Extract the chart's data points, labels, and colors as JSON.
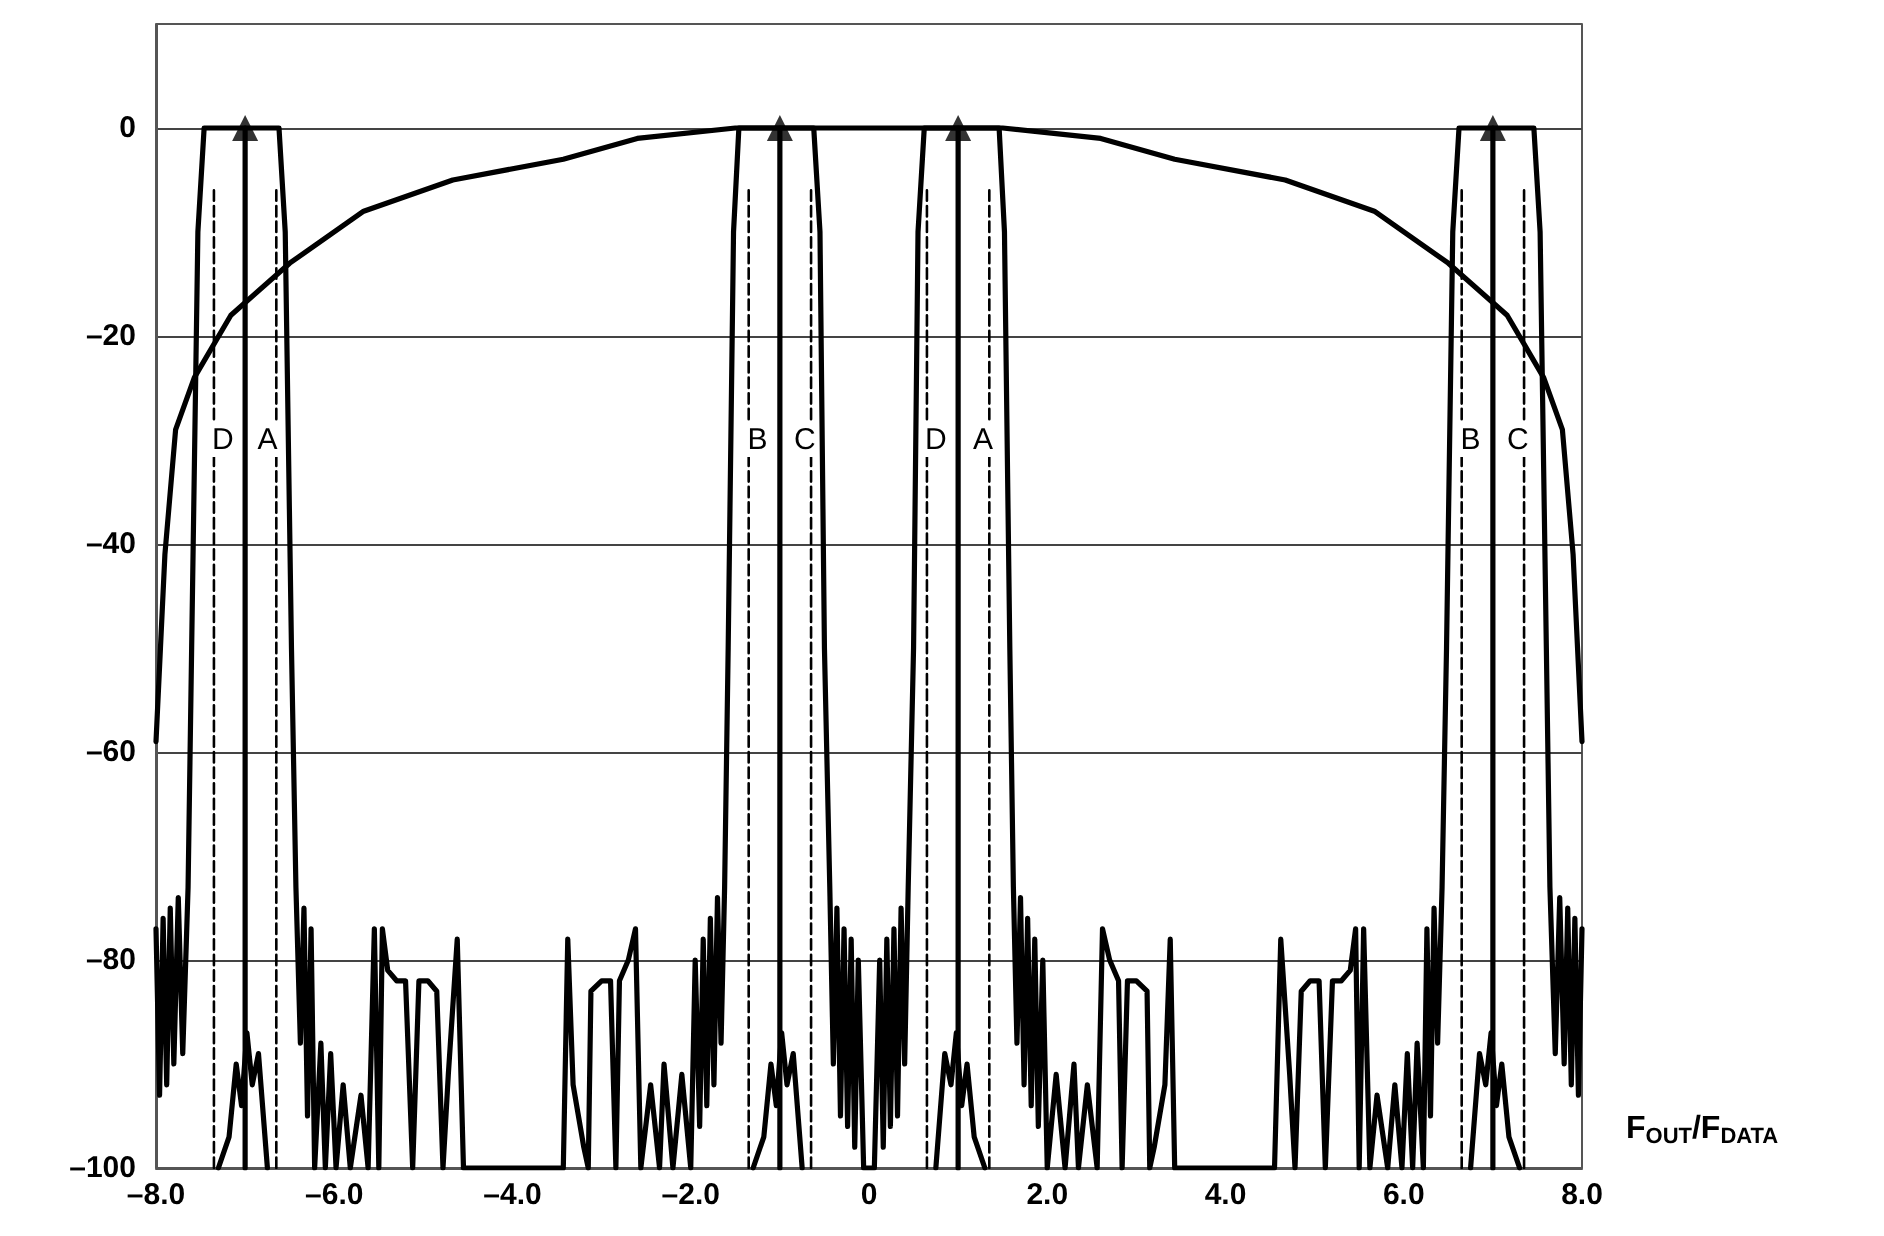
{
  "chart_data": {
    "type": "line",
    "xlabel": "F$_{OUT}$/F$_{DATA}$",
    "xlim": [
      -8,
      8
    ],
    "xticks": [
      {
        "value": -8,
        "label": "–8.0"
      },
      {
        "value": -6,
        "label": "–6.0"
      },
      {
        "value": -4,
        "label": "–4.0"
      },
      {
        "value": -2,
        "label": "–2.0"
      },
      0,
      {
        "value": 2,
        "label": "2.0"
      },
      {
        "value": 4,
        "label": "4.0"
      },
      {
        "value": 6,
        "label": "6.0"
      },
      {
        "value": 8,
        "label": "8.0"
      }
    ],
    "ylim": [
      -100,
      10
    ],
    "yticks": [
      {
        "value": -100,
        "label": "–100"
      },
      {
        "value": -80,
        "label": "–80"
      },
      {
        "value": -60,
        "label": "–60"
      },
      {
        "value": -40,
        "label": "–40"
      },
      {
        "value": -20,
        "label": "–20"
      },
      0
    ],
    "grid": "y",
    "marker": "none",
    "series": [
      {
        "color": "#000000",
        "x": [
          -8,
          -7.95,
          -7.9,
          -7.78,
          -7.57,
          -7.16,
          -6.5,
          -5.67,
          -4.67,
          -3.43,
          -2.6,
          -1.5,
          0,
          1.5,
          2.6,
          3.43,
          4.67,
          5.67,
          6.5,
          7.16,
          7.57,
          7.78,
          7.9,
          7.95,
          8
        ],
        "values": [
          -59,
          -50,
          -41,
          -29,
          -24,
          -18,
          -13,
          -8,
          -5,
          -3,
          -1,
          0,
          0,
          0,
          -1,
          -3,
          -5,
          -8,
          -13,
          -18,
          -24,
          -29,
          -41,
          -50,
          -59
        ]
      },
      {
        "color": "#000000",
        "x": [
          -8,
          -7.96,
          -7.92,
          -7.88,
          -7.84,
          -7.8,
          -7.75,
          -7.7,
          -7.64,
          -7.6,
          -7.53,
          -7.46,
          -6.62,
          -6.55,
          -6.48,
          -6.43,
          -6.38,
          -6.34,
          -6.3,
          -6.26,
          -6.22,
          -6.15,
          -6.1,
          -6.04,
          -5.98,
          -5.9,
          -5.82,
          -5.7,
          -5.62,
          -5.55,
          -5.5,
          -5.46,
          -5.4,
          -5.3,
          -5.2,
          -5.12,
          -5.05,
          -4.95,
          -4.85,
          -4.78,
          -4.72,
          -4.62,
          -4.55,
          -3.43,
          -3.38,
          -3.32,
          -3.2,
          -3.15,
          -3.12,
          -3.0,
          -2.9,
          -2.84,
          -2.8,
          -2.7,
          -2.62,
          -2.56,
          -2.45,
          -2.35,
          -2.3,
          -2.2,
          -2.1,
          -2.0,
          -1.95,
          -1.9,
          -1.86,
          -1.82,
          -1.78,
          -1.74,
          -1.7,
          -1.66,
          -1.62,
          -1.58,
          -1.52,
          -1.46,
          -0.62,
          -0.55,
          -0.5,
          -0.44,
          -0.4,
          -0.36,
          -0.32,
          -0.28,
          -0.24,
          -0.2,
          -0.16,
          -0.12,
          -0.06,
          0,
          0.06,
          0.12,
          0.16,
          0.2,
          0.24,
          0.28,
          0.32,
          0.36,
          0.4,
          0.44,
          0.5,
          0.55,
          0.62,
          1.46,
          1.52,
          1.58,
          1.62,
          1.66,
          1.7,
          1.74,
          1.78,
          1.82,
          1.86,
          1.9,
          1.95,
          2.0,
          2.1,
          2.2,
          2.3,
          2.35,
          2.45,
          2.56,
          2.62,
          2.7,
          2.8,
          2.84,
          2.9,
          3.0,
          3.12,
          3.15,
          3.2,
          3.32,
          3.38,
          3.43,
          4.55,
          4.62,
          4.72,
          4.78,
          4.85,
          4.95,
          5.05,
          5.12,
          5.2,
          5.3,
          5.4,
          5.46,
          5.5,
          5.55,
          5.62,
          5.7,
          5.82,
          5.9,
          5.98,
          6.04,
          6.1,
          6.15,
          6.22,
          6.26,
          6.3,
          6.34,
          6.38,
          6.43,
          6.48,
          6.55,
          6.62,
          7.46,
          7.53,
          7.6,
          7.64,
          7.7,
          7.75,
          7.8,
          7.84,
          7.88,
          7.92,
          7.96,
          8
        ],
        "values": [
          -77,
          -93,
          -76,
          -92,
          -75,
          -90,
          -74,
          -89,
          -73,
          -50,
          -10,
          0,
          0,
          -10,
          -50,
          -73,
          -88,
          -75,
          -95,
          -77,
          -100,
          -88,
          -100,
          -89,
          -100,
          -92,
          -100,
          -93,
          -100,
          -77,
          -100,
          -77,
          -81,
          -82,
          -82,
          -100,
          -82,
          -82,
          -83,
          -100,
          -91,
          -78,
          -100,
          -100,
          -78,
          -92,
          -98,
          -100,
          -83,
          -82,
          -82,
          -100,
          -82,
          -80,
          -77,
          -100,
          -92,
          -100,
          -90,
          -100,
          -91,
          -100,
          -80,
          -96,
          -78,
          -94,
          -76,
          -92,
          -74,
          -88,
          -73,
          -50,
          -10,
          0,
          0,
          -10,
          -50,
          -73,
          -90,
          -75,
          -95,
          -77,
          -96,
          -78,
          -98,
          -80,
          -100,
          -100,
          -100,
          -80,
          -98,
          -78,
          -96,
          -77,
          -95,
          -75,
          -90,
          -73,
          -50,
          -10,
          0,
          0,
          -10,
          -50,
          -73,
          -88,
          -74,
          -92,
          -76,
          -94,
          -78,
          -96,
          -80,
          -100,
          -91,
          -100,
          -90,
          -100,
          -92,
          -100,
          -77,
          -80,
          -82,
          -100,
          -82,
          -82,
          -83,
          -100,
          -98,
          -92,
          -78,
          -100,
          -100,
          -78,
          -91,
          -100,
          -83,
          -82,
          -82,
          -100,
          -82,
          -82,
          -81,
          -77,
          -100,
          -77,
          -100,
          -93,
          -100,
          -92,
          -100,
          -89,
          -100,
          -88,
          -100,
          -77,
          -95,
          -75,
          -88,
          -73,
          -50,
          -10,
          0,
          0,
          -10,
          -50,
          -73,
          -89,
          -74,
          -90,
          -75,
          -92,
          -76,
          -93,
          -77
        ]
      },
      {
        "color": "#000000",
        "x": [
          -7.3,
          -7.18,
          -7.1,
          -7.04,
          -6.98,
          -6.92,
          -6.85,
          -6.75,
          null,
          -1.3,
          -1.18,
          -1.1,
          -1.04,
          -0.98,
          -0.92,
          -0.85,
          -0.75,
          null,
          0.75,
          0.85,
          0.92,
          0.98,
          1.04,
          1.1,
          1.18,
          1.3,
          null,
          6.75,
          6.85,
          6.92,
          6.98,
          7.04,
          7.1,
          7.18,
          7.3
        ],
        "values": [
          -100,
          -97,
          -90,
          -94,
          -87,
          -92,
          -89,
          -100,
          null,
          -100,
          -97,
          -90,
          -94,
          -87,
          -92,
          -89,
          -100,
          null,
          -100,
          -89,
          -92,
          -87,
          -94,
          -90,
          -97,
          -100,
          null,
          -100,
          -89,
          -92,
          -87,
          -94,
          -90,
          -97,
          -100
        ]
      },
      {
        "color": "#000000",
        "line_style": "dashed",
        "x": [
          -7.35,
          -7.35,
          null,
          -6.65,
          -6.65,
          null,
          -1.35,
          -1.35,
          null,
          -0.65,
          -0.65,
          null,
          0.65,
          0.65,
          null,
          1.35,
          1.35,
          null,
          6.65,
          6.65,
          null,
          7.35,
          7.35
        ],
        "values": [
          -100,
          -6,
          null,
          -100,
          -6,
          null,
          -100,
          -6,
          null,
          -100,
          -6,
          null,
          -100,
          -6,
          null,
          -100,
          -6,
          null,
          -100,
          -6,
          null,
          -100,
          -6
        ]
      },
      {
        "color": "#000000",
        "x": [
          -7,
          -7,
          null,
          -1,
          -1,
          null,
          1,
          1,
          null,
          7,
          7
        ],
        "values": [
          -100,
          0,
          null,
          -100,
          0,
          null,
          -100,
          0,
          null,
          -100,
          0
        ]
      },
      {
        "type": "scatter",
        "color": "#000000",
        "marker": "triangle",
        "x": [
          -7,
          -1,
          1,
          7
        ],
        "values": [
          0,
          0,
          0,
          0
        ]
      }
    ],
    "annotations": [
      {
        "text": "D",
        "x": -7.25,
        "y": -30
      },
      {
        "text": "A",
        "x": -6.75,
        "y": -30
      },
      {
        "text": "B",
        "x": -1.25,
        "y": -30
      },
      {
        "text": "C",
        "x": -0.72,
        "y": -30
      },
      {
        "text": "D",
        "x": 0.75,
        "y": -30
      },
      {
        "text": "A",
        "x": 1.28,
        "y": -30
      },
      {
        "text": "B",
        "x": 6.75,
        "y": -30
      },
      {
        "text": "C",
        "x": 7.28,
        "y": -30
      }
    ]
  }
}
